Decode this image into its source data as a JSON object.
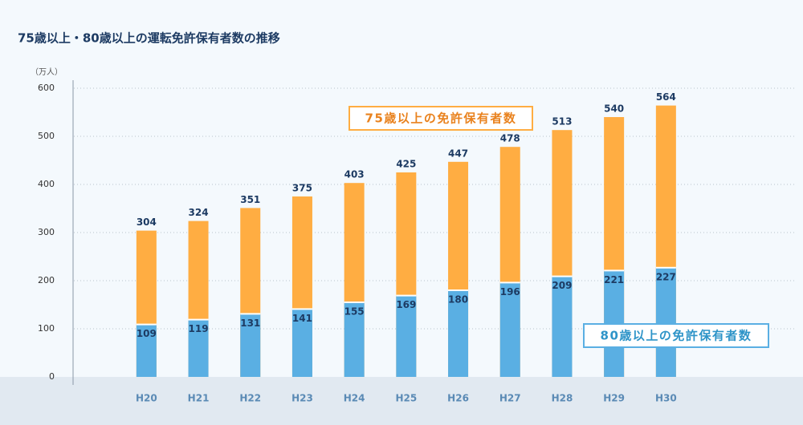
{
  "chart_data": {
    "type": "bar",
    "title": "75歳以上・80歳以上の運転免許保有者数の推移",
    "y_unit": "（万人）",
    "categories": [
      "H20",
      "H21",
      "H22",
      "H23",
      "H24",
      "H25",
      "H26",
      "H27",
      "H28",
      "H29",
      "H30"
    ],
    "series": [
      {
        "name": "75歳以上の免許保有者数",
        "color": "#ffad42",
        "values": [
          304,
          324,
          351,
          375,
          403,
          425,
          447,
          478,
          513,
          540,
          564
        ]
      },
      {
        "name": "80歳以上の免許保有者数",
        "color": "#5aafe3",
        "values": [
          109,
          119,
          131,
          141,
          155,
          169,
          180,
          196,
          209,
          221,
          227
        ]
      }
    ],
    "ylim": [
      0,
      600
    ],
    "yticks": [
      0,
      100,
      200,
      300,
      400,
      500,
      600
    ],
    "grid": true,
    "overlay": true
  }
}
